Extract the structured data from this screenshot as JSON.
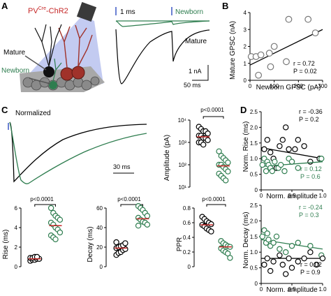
{
  "colors": {
    "mature": "#000000",
    "newborn": "#2e7d4f",
    "mean": "#c62828",
    "stim": "#3b57c4",
    "light": "#b9c2ee",
    "cells": "#8a8a8a",
    "dend": "#a0322a"
  },
  "panel_A": {
    "letter": "A",
    "label_pv": "PV",
    "label_sup": "Cre",
    "label_chr2": "-ChR2",
    "label_mature": "Mature",
    "label_newborn": "Newborn",
    "trace_time": "1 ms",
    "trace_newborn": "Newborn",
    "trace_mature": "Mature",
    "scale_current": "1 nA",
    "scale_time": "50 ms"
  },
  "panel_B": {
    "letter": "B",
    "ylabel": "Mature GPSC (nA)",
    "xlabel": "Newborn GPSC (pA)",
    "xticks": [
      "0",
      "100",
      "200",
      "300"
    ],
    "yticks": [
      "0",
      "1",
      "2",
      "3",
      "4"
    ],
    "stat_r": "r = 0.72",
    "stat_p": "P = 0.02"
  },
  "panel_C": {
    "letter": "C",
    "trace_title": "Normalized",
    "trace_scale": "30 ms",
    "amp_ylabel": "Amplitude (pA)",
    "amp_yticks": [
      "10⁴",
      "10³",
      "10²",
      "10¹"
    ],
    "p_label": "p<0.0001",
    "rise_ylabel": "Rise (ms)",
    "rise_yticks": [
      "0",
      "2",
      "4",
      "6"
    ],
    "decay_ylabel": "Decay (ms)",
    "decay_yticks": [
      "0",
      "20",
      "40",
      "60"
    ],
    "ppr_ylabel": "PPR",
    "ppr_yticks": [
      "0",
      "0.2",
      "0.4",
      "0.6",
      "0.8"
    ]
  },
  "panel_D": {
    "letter": "D",
    "top_ylabel": "Norm. Rise (ms)",
    "bottom_ylabel": "Norm. Decay (ms)",
    "xlabel": "Norm. amplitude",
    "xticks": [
      "0",
      "0.5",
      "1.0"
    ],
    "yticks": [
      "0",
      "0.5",
      "1.0",
      "1.5",
      "2.0",
      "2.5"
    ],
    "top_r_black": "r = -0.36",
    "top_p_black": "P = 0.2",
    "top_r_green": "r = 0.12",
    "top_p_green": "P = 0.6",
    "bot_r_green": "r = -0.24",
    "bot_p_green": "P = 0.3",
    "bot_r_black": "r = 0.02",
    "bot_p_black": "P = 0.9"
  },
  "chart_data": [
    {
      "type": "scatter",
      "panel": "B",
      "xlabel": "Newborn GPSC (pA)",
      "ylabel": "Mature GPSC (nA)",
      "xlim": [
        0,
        300
      ],
      "ylim": [
        0,
        4
      ],
      "series": [
        {
          "x": [
            5,
            25,
            35,
            45,
            80,
            85,
            100,
            150,
            160,
            240,
            270
          ],
          "y": [
            1.4,
            1.4,
            0.3,
            1.5,
            1.6,
            0.8,
            2.0,
            1.1,
            3.6,
            3.6,
            2.8
          ]
        }
      ],
      "fit": {
        "x": [
          0,
          300
        ],
        "y": [
          0.9,
          3.0
        ]
      }
    },
    {
      "type": "scatter",
      "panel": "C-amplitude",
      "ylabel": "Amplitude (pA)",
      "ylim_log10": [
        1,
        4
      ],
      "series": [
        {
          "name": "mature",
          "mean_log10": 3.25,
          "values_log10": [
            3.7,
            3.6,
            3.5,
            3.5,
            3.4,
            3.3,
            3.3,
            3.2,
            3.2,
            3.1,
            3.0,
            3.0,
            2.9
          ]
        },
        {
          "name": "newborn",
          "mean_log10": 1.95,
          "values_log10": [
            2.6,
            2.4,
            2.3,
            2.2,
            2.1,
            2.0,
            2.0,
            1.9,
            1.8,
            1.7,
            1.6,
            1.5,
            1.4,
            1.3
          ]
        }
      ]
    },
    {
      "type": "scatter",
      "panel": "C-rise",
      "ylabel": "Rise (ms)",
      "ylim": [
        0,
        6
      ],
      "series": [
        {
          "name": "mature",
          "mean": 0.8,
          "values": [
            0.6,
            0.7,
            0.7,
            0.8,
            0.8,
            0.9,
            0.9,
            1.0,
            1.0
          ]
        },
        {
          "name": "newborn",
          "mean": 4.2,
          "values": [
            6.0,
            5.5,
            5.2,
            5.0,
            4.8,
            4.5,
            4.3,
            4.0,
            3.8,
            3.5,
            3.2,
            3.0,
            2.8
          ]
        }
      ]
    },
    {
      "type": "scatter",
      "panel": "C-decay",
      "ylabel": "Decay (ms)",
      "ylim": [
        0,
        60
      ],
      "series": [
        {
          "name": "mature",
          "mean": 19,
          "values": [
            12,
            14,
            15,
            17,
            18,
            19,
            20,
            21,
            22,
            24,
            25
          ]
        },
        {
          "name": "newborn",
          "mean": 49,
          "values": [
            62,
            60,
            58,
            55,
            52,
            50,
            48,
            46,
            45,
            43,
            42
          ]
        }
      ]
    },
    {
      "type": "scatter",
      "panel": "C-ppr",
      "ylabel": "PPR",
      "ylim": [
        0,
        0.8
      ],
      "series": [
        {
          "name": "mature",
          "mean": 0.57,
          "values": [
            0.68,
            0.65,
            0.62,
            0.6,
            0.58,
            0.57,
            0.55,
            0.52,
            0.5,
            0.48
          ]
        },
        {
          "name": "newborn",
          "mean": 0.27,
          "values": [
            0.35,
            0.32,
            0.3,
            0.28,
            0.27,
            0.25,
            0.22,
            0.2,
            0.18,
            0.12
          ]
        }
      ]
    },
    {
      "type": "scatter",
      "panel": "D-rise",
      "xlabel": "Norm. amplitude",
      "ylabel": "Norm. Rise (ms)",
      "xlim": [
        0,
        1.0
      ],
      "ylim": [
        0,
        2.5
      ],
      "series": [
        {
          "name": "mature",
          "x": [
            0.05,
            0.1,
            0.15,
            0.2,
            0.25,
            0.3,
            0.35,
            0.4,
            0.45,
            0.5,
            0.55,
            0.6,
            0.7,
            0.8,
            0.95
          ],
          "y": [
            1.3,
            1.6,
            1.2,
            1.0,
            0.7,
            1.4,
            1.6,
            2.0,
            1.3,
            0.9,
            1.3,
            1.6,
            1.4,
            0.9,
            1.0
          ],
          "fit": {
            "x": [
              0,
              1
            ],
            "y": [
              1.35,
              1.0
            ]
          }
        },
        {
          "name": "newborn",
          "x": [
            0.02,
            0.05,
            0.08,
            0.1,
            0.12,
            0.15,
            0.18,
            0.22,
            0.28,
            0.32,
            0.38,
            0.45,
            0.5,
            0.6,
            0.98
          ],
          "y": [
            0.8,
            1.0,
            0.6,
            0.9,
            0.8,
            0.7,
            0.6,
            0.9,
            0.7,
            0.8,
            0.6,
            1.0,
            0.9,
            0.7,
            1.0
          ],
          "fit": {
            "x": [
              0,
              1
            ],
            "y": [
              0.75,
              0.9
            ]
          }
        }
      ]
    },
    {
      "type": "scatter",
      "panel": "D-decay",
      "xlabel": "Norm. amplitude",
      "ylabel": "Norm. Decay (ms)",
      "xlim": [
        0,
        1.0
      ],
      "ylim": [
        0,
        2.5
      ],
      "series": [
        {
          "name": "newborn",
          "x": [
            0.02,
            0.05,
            0.08,
            0.1,
            0.12,
            0.15,
            0.2,
            0.25,
            0.3,
            0.4,
            0.5,
            0.6,
            0.8,
            0.98
          ],
          "y": [
            1.5,
            1.7,
            1.3,
            1.6,
            1.4,
            1.2,
            1.3,
            1.5,
            1.1,
            1.0,
            1.2,
            1.3,
            1.2,
            0.9
          ],
          "fit": {
            "x": [
              0,
              1
            ],
            "y": [
              1.4,
              1.1
            ]
          }
        },
        {
          "name": "mature",
          "x": [
            0.05,
            0.1,
            0.15,
            0.2,
            0.3,
            0.35,
            0.4,
            0.45,
            0.5,
            0.6,
            0.7,
            0.8,
            0.9,
            1.0
          ],
          "y": [
            0.6,
            0.8,
            0.4,
            0.7,
            0.9,
            0.6,
            0.3,
            0.8,
            0.5,
            0.7,
            0.8,
            1.0,
            0.6,
            0.8
          ],
          "fit": {
            "x": [
              0,
              1
            ],
            "y": [
              0.8,
              0.8
            ]
          }
        }
      ]
    }
  ]
}
